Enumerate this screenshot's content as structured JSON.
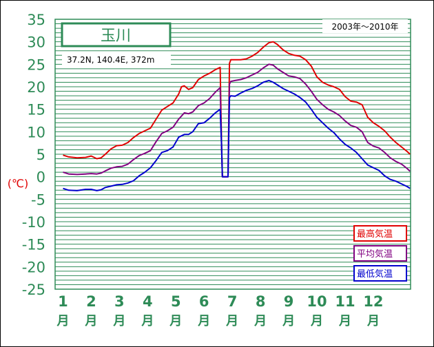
{
  "chart_data": {
    "type": "line",
    "title": "玉川",
    "subtitle": "37.2N,  140.4E,  372m",
    "period": "2003年〜2010年",
    "ylabel": "(℃)",
    "ylim": [
      -25,
      35
    ],
    "yticks": [
      35,
      30,
      25,
      20,
      15,
      10,
      5,
      0,
      -5,
      -10,
      -15,
      -20,
      -25
    ],
    "ygrid_step": 1,
    "xlim": [
      1,
      13
    ],
    "xticks": [
      {
        "num": "1",
        "unit": "月"
      },
      {
        "num": "2",
        "unit": "月"
      },
      {
        "num": "3",
        "unit": "月"
      },
      {
        "num": "4",
        "unit": "月"
      },
      {
        "num": "5",
        "unit": "月"
      },
      {
        "num": "6",
        "unit": "月"
      },
      {
        "num": "7",
        "unit": "月"
      },
      {
        "num": "8",
        "unit": "月"
      },
      {
        "num": "9",
        "unit": "月"
      },
      {
        "num": "10",
        "unit": "月"
      },
      {
        "num": "11",
        "unit": "月"
      },
      {
        "num": "12",
        "unit": "月"
      }
    ],
    "legend_position": "bottom-right",
    "grid": true,
    "colors": {
      "plot_bg": "#ffffff",
      "grid": "#2e8b57",
      "axis_text": "#2e8b57",
      "title_text": "#2e8b57",
      "ylabel_text": "#e00000"
    },
    "series": [
      {
        "name": "最高気温",
        "color": "#e00000",
        "points": [
          [
            1.0,
            4.8
          ],
          [
            1.2,
            4.4
          ],
          [
            1.5,
            4.2
          ],
          [
            1.8,
            4.3
          ],
          [
            2.0,
            4.6
          ],
          [
            2.2,
            4.0
          ],
          [
            2.35,
            4.2
          ],
          [
            2.5,
            5.0
          ],
          [
            2.7,
            6.2
          ],
          [
            2.9,
            6.9
          ],
          [
            3.1,
            7.0
          ],
          [
            3.3,
            7.6
          ],
          [
            3.5,
            8.7
          ],
          [
            3.7,
            9.6
          ],
          [
            3.9,
            10.2
          ],
          [
            4.1,
            10.8
          ],
          [
            4.3,
            12.8
          ],
          [
            4.5,
            14.8
          ],
          [
            4.7,
            15.6
          ],
          [
            4.9,
            16.4
          ],
          [
            5.1,
            18.4
          ],
          [
            5.2,
            20.0
          ],
          [
            5.3,
            20.2
          ],
          [
            5.45,
            19.4
          ],
          [
            5.6,
            19.8
          ],
          [
            5.8,
            21.6
          ],
          [
            6.0,
            22.4
          ],
          [
            6.2,
            23.0
          ],
          [
            6.4,
            23.8
          ],
          [
            6.57,
            24.3
          ],
          [
            6.62,
            7.5
          ],
          [
            6.65,
            0.0
          ],
          [
            6.85,
            0.0
          ],
          [
            6.9,
            25.2
          ],
          [
            6.95,
            26.0
          ],
          [
            7.1,
            26.0
          ],
          [
            7.3,
            26.0
          ],
          [
            7.5,
            26.2
          ],
          [
            7.7,
            26.8
          ],
          [
            7.9,
            27.6
          ],
          [
            8.1,
            28.8
          ],
          [
            8.3,
            29.8
          ],
          [
            8.45,
            30.0
          ],
          [
            8.6,
            29.4
          ],
          [
            8.8,
            28.2
          ],
          [
            9.0,
            27.4
          ],
          [
            9.2,
            27.0
          ],
          [
            9.4,
            26.8
          ],
          [
            9.6,
            26.0
          ],
          [
            9.8,
            24.6
          ],
          [
            10.0,
            22.2
          ],
          [
            10.2,
            21.0
          ],
          [
            10.4,
            20.4
          ],
          [
            10.6,
            20.0
          ],
          [
            10.8,
            19.4
          ],
          [
            11.0,
            17.8
          ],
          [
            11.2,
            16.8
          ],
          [
            11.4,
            16.6
          ],
          [
            11.6,
            16.0
          ],
          [
            11.8,
            13.2
          ],
          [
            12.0,
            12.0
          ],
          [
            12.2,
            11.2
          ],
          [
            12.4,
            10.2
          ],
          [
            12.6,
            8.8
          ],
          [
            12.8,
            7.6
          ],
          [
            13.0,
            6.6
          ],
          [
            13.2,
            5.6
          ],
          [
            13.3,
            5.0
          ]
        ]
      },
      {
        "name": "平均気温",
        "color": "#800080",
        "points": [
          [
            1.0,
            1.0
          ],
          [
            1.2,
            0.6
          ],
          [
            1.5,
            0.5
          ],
          [
            1.8,
            0.6
          ],
          [
            2.0,
            0.7
          ],
          [
            2.2,
            0.6
          ],
          [
            2.35,
            0.8
          ],
          [
            2.5,
            1.3
          ],
          [
            2.7,
            1.9
          ],
          [
            2.9,
            2.2
          ],
          [
            3.1,
            2.3
          ],
          [
            3.3,
            2.8
          ],
          [
            3.5,
            3.8
          ],
          [
            3.7,
            4.7
          ],
          [
            3.9,
            5.2
          ],
          [
            4.1,
            5.8
          ],
          [
            4.3,
            7.8
          ],
          [
            4.5,
            9.6
          ],
          [
            4.7,
            10.2
          ],
          [
            4.9,
            11.0
          ],
          [
            5.1,
            12.8
          ],
          [
            5.3,
            14.2
          ],
          [
            5.45,
            14.0
          ],
          [
            5.6,
            14.4
          ],
          [
            5.8,
            15.8
          ],
          [
            6.0,
            16.4
          ],
          [
            6.2,
            17.4
          ],
          [
            6.4,
            18.8
          ],
          [
            6.57,
            19.8
          ],
          [
            6.62,
            7.0
          ],
          [
            6.65,
            0.0
          ],
          [
            6.85,
            0.0
          ],
          [
            6.9,
            20.6
          ],
          [
            6.95,
            21.2
          ],
          [
            7.1,
            21.4
          ],
          [
            7.3,
            21.6
          ],
          [
            7.5,
            22.0
          ],
          [
            7.7,
            22.6
          ],
          [
            7.9,
            23.2
          ],
          [
            8.1,
            24.2
          ],
          [
            8.3,
            25.0
          ],
          [
            8.45,
            24.8
          ],
          [
            8.6,
            24.0
          ],
          [
            8.8,
            23.2
          ],
          [
            9.0,
            22.4
          ],
          [
            9.2,
            22.2
          ],
          [
            9.4,
            21.8
          ],
          [
            9.6,
            20.6
          ],
          [
            9.8,
            19.0
          ],
          [
            10.0,
            17.2
          ],
          [
            10.2,
            16.0
          ],
          [
            10.4,
            15.0
          ],
          [
            10.6,
            14.4
          ],
          [
            10.8,
            13.6
          ],
          [
            11.0,
            12.4
          ],
          [
            11.2,
            11.4
          ],
          [
            11.4,
            11.0
          ],
          [
            11.6,
            10.0
          ],
          [
            11.8,
            7.6
          ],
          [
            12.0,
            6.8
          ],
          [
            12.2,
            6.4
          ],
          [
            12.4,
            5.4
          ],
          [
            12.6,
            4.2
          ],
          [
            12.8,
            3.4
          ],
          [
            13.0,
            2.8
          ],
          [
            13.2,
            1.8
          ],
          [
            13.3,
            1.2
          ]
        ]
      },
      {
        "name": "最低気温",
        "color": "#0000cd",
        "points": [
          [
            1.0,
            -2.6
          ],
          [
            1.2,
            -3.0
          ],
          [
            1.5,
            -3.1
          ],
          [
            1.8,
            -2.8
          ],
          [
            2.0,
            -2.8
          ],
          [
            2.2,
            -3.1
          ],
          [
            2.35,
            -2.9
          ],
          [
            2.5,
            -2.4
          ],
          [
            2.7,
            -2.1
          ],
          [
            2.9,
            -1.8
          ],
          [
            3.1,
            -1.7
          ],
          [
            3.3,
            -1.4
          ],
          [
            3.5,
            -0.9
          ],
          [
            3.7,
            0.2
          ],
          [
            3.9,
            1.0
          ],
          [
            4.1,
            2.0
          ],
          [
            4.3,
            3.6
          ],
          [
            4.5,
            5.4
          ],
          [
            4.7,
            5.8
          ],
          [
            4.9,
            6.6
          ],
          [
            5.1,
            8.8
          ],
          [
            5.3,
            9.4
          ],
          [
            5.45,
            9.4
          ],
          [
            5.6,
            10.0
          ],
          [
            5.8,
            11.8
          ],
          [
            6.0,
            12.0
          ],
          [
            6.2,
            13.0
          ],
          [
            6.4,
            14.2
          ],
          [
            6.57,
            15.0
          ],
          [
            6.62,
            7.0
          ],
          [
            6.65,
            0.0
          ],
          [
            6.85,
            0.0
          ],
          [
            6.9,
            17.6
          ],
          [
            6.95,
            18.0
          ],
          [
            7.1,
            17.9
          ],
          [
            7.3,
            18.6
          ],
          [
            7.5,
            19.2
          ],
          [
            7.7,
            19.6
          ],
          [
            7.9,
            20.2
          ],
          [
            8.1,
            21.0
          ],
          [
            8.3,
            21.4
          ],
          [
            8.45,
            21.0
          ],
          [
            8.6,
            20.4
          ],
          [
            8.8,
            19.6
          ],
          [
            9.0,
            19.0
          ],
          [
            9.2,
            18.4
          ],
          [
            9.4,
            17.6
          ],
          [
            9.6,
            16.6
          ],
          [
            9.8,
            15.0
          ],
          [
            10.0,
            13.2
          ],
          [
            10.2,
            12.0
          ],
          [
            10.4,
            10.8
          ],
          [
            10.6,
            9.8
          ],
          [
            10.8,
            8.4
          ],
          [
            11.0,
            7.2
          ],
          [
            11.2,
            6.4
          ],
          [
            11.4,
            5.4
          ],
          [
            11.6,
            4.0
          ],
          [
            11.8,
            2.6
          ],
          [
            12.0,
            2.0
          ],
          [
            12.2,
            1.4
          ],
          [
            12.4,
            0.2
          ],
          [
            12.6,
            -0.6
          ],
          [
            12.8,
            -1.0
          ],
          [
            13.0,
            -1.6
          ],
          [
            13.2,
            -2.2
          ],
          [
            13.3,
            -2.6
          ]
        ]
      }
    ]
  }
}
